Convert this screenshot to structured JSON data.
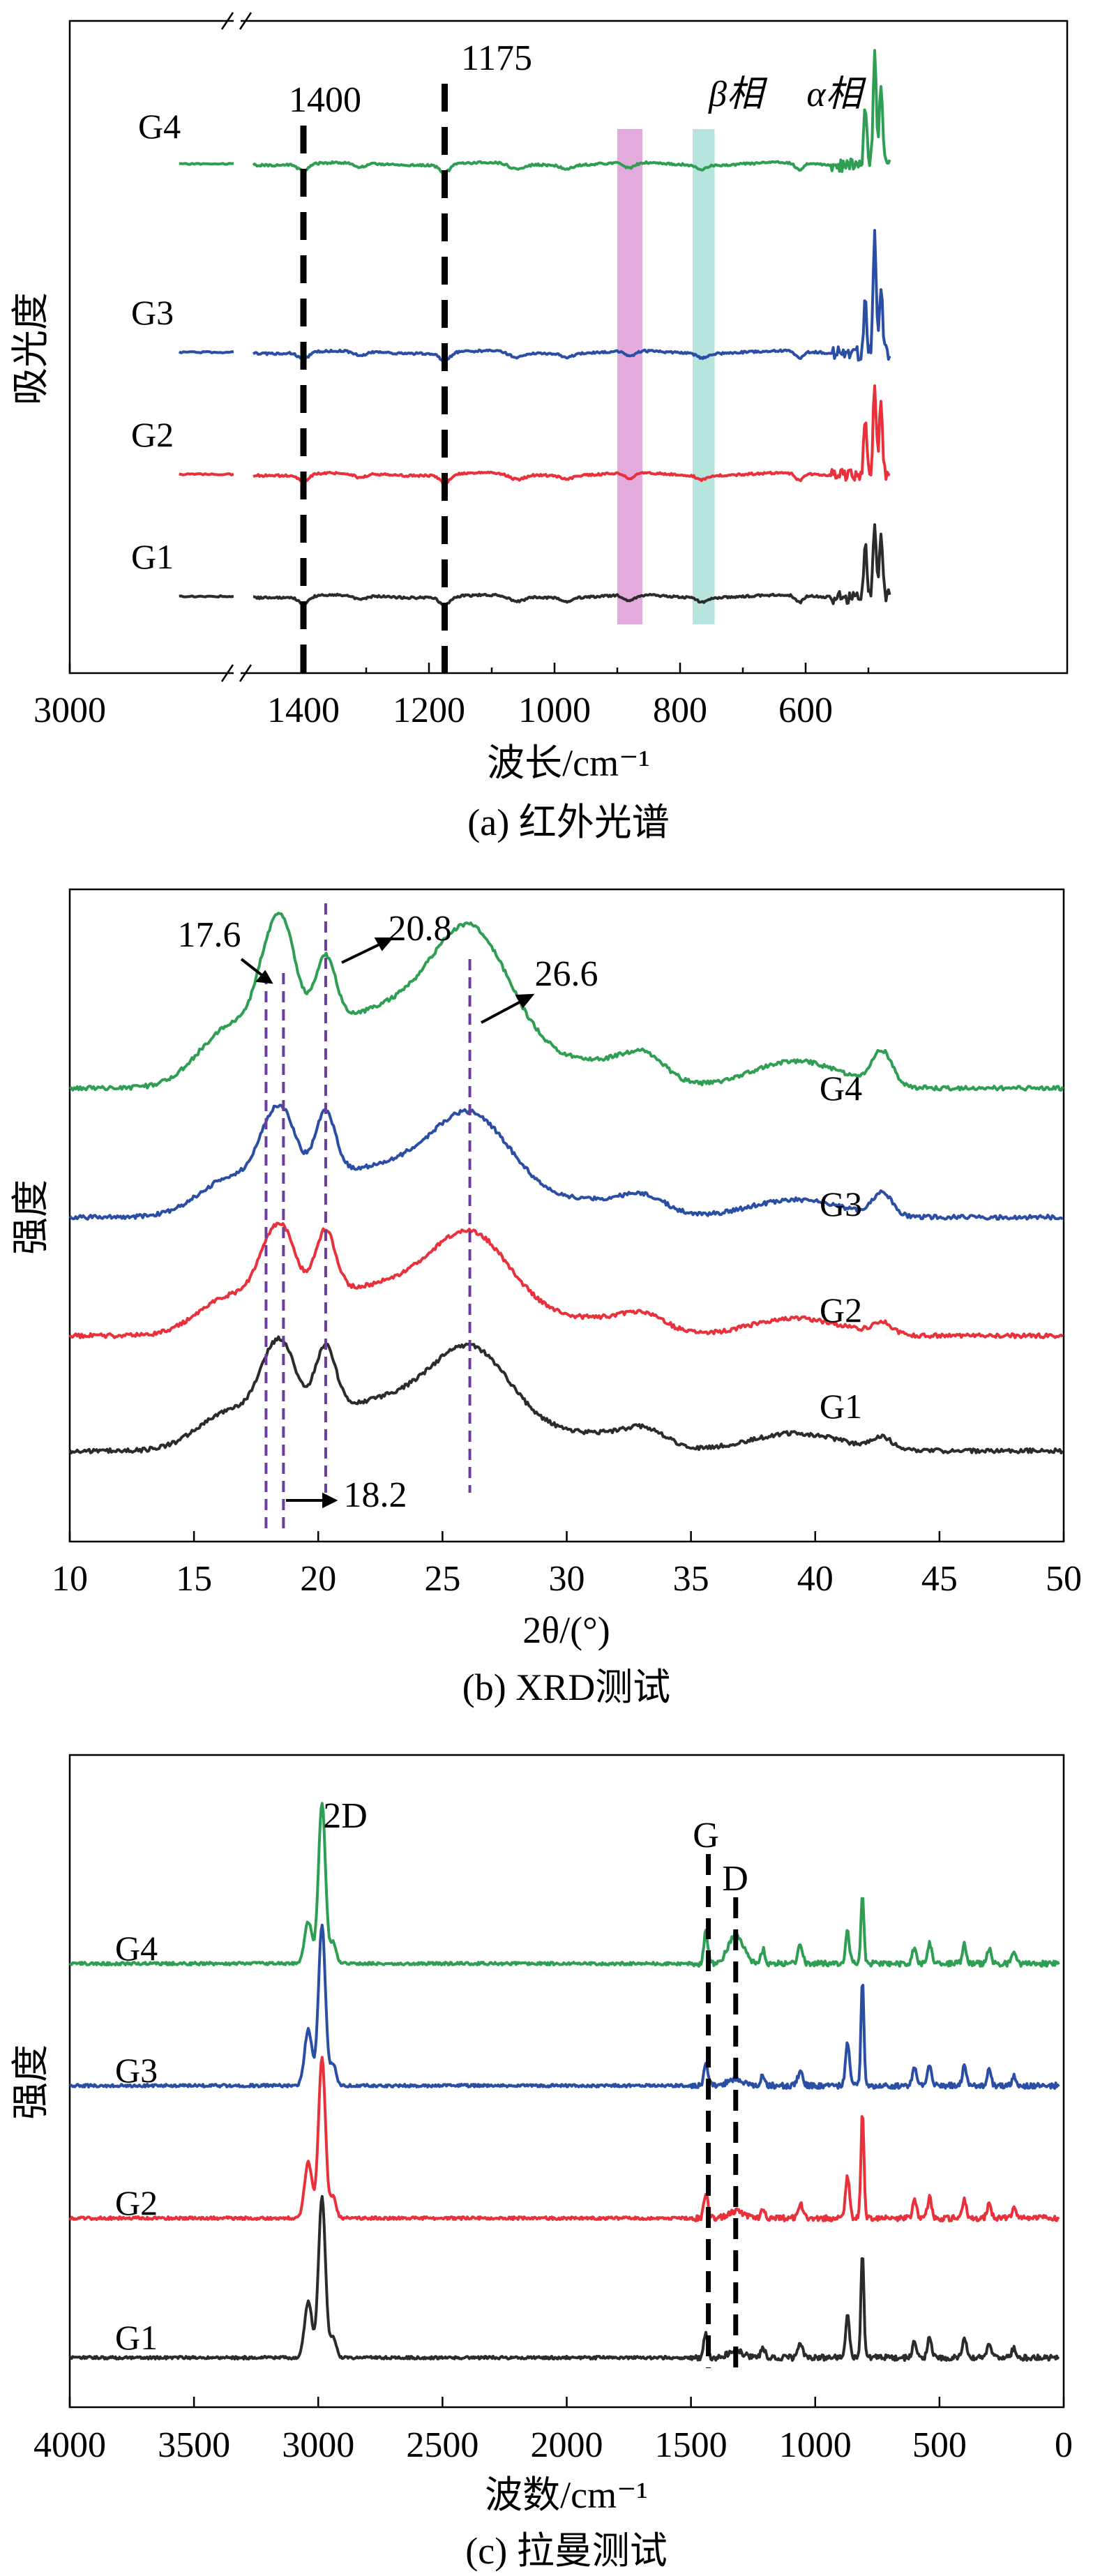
{
  "colors": {
    "G1": "#2b2b2b",
    "G2": "#e8313b",
    "G3": "#2a4ea3",
    "G4": "#2e9e52",
    "beta": "#d98fd0",
    "alpha": "#9fdbd0"
  },
  "chart_data": [
    {
      "type": "line",
      "panel": "a",
      "caption": "(a) 红外光谱",
      "xlabel": "波长/cm⁻¹",
      "ylabel": "吸光度",
      "x_reversed": true,
      "axis_break": true,
      "xticks": [
        "3000",
        "1400",
        "1200",
        "1000",
        "800",
        "600"
      ],
      "series_labels": [
        "G4",
        "G3",
        "G2",
        "G1"
      ],
      "annotations": [
        "1400",
        "1175",
        "β相",
        "α相"
      ],
      "dashed_lines_x": [
        1400,
        1175
      ],
      "bands": [
        {
          "name": "β相",
          "range": [
            900,
            860
          ]
        },
        {
          "name": "α相",
          "range": [
            780,
            745
          ]
        }
      ],
      "series": [
        {
          "name": "G4",
          "offset": 3,
          "dips": [
            [
              1400,
              0.25
            ],
            [
              1175,
              0.3
            ],
            [
              880,
              0.2
            ],
            [
              765,
              0.15
            ]
          ],
          "peaks": [
            [
              490,
              2.6
            ],
            [
              480,
              2.0
            ],
            [
              505,
              1.4
            ]
          ]
        },
        {
          "name": "G3",
          "offset": 2,
          "dips": [
            [
              1400,
              0.25
            ],
            [
              1175,
              0.3
            ],
            [
              880,
              0.2
            ],
            [
              765,
              0.15
            ]
          ],
          "peaks": [
            [
              490,
              2.9
            ],
            [
              480,
              1.6
            ],
            [
              505,
              1.2
            ]
          ]
        },
        {
          "name": "G2",
          "offset": 1,
          "dips": [
            [
              1400,
              0.25
            ],
            [
              1175,
              0.3
            ],
            [
              880,
              0.2
            ],
            [
              765,
              0.15
            ]
          ],
          "peaks": [
            [
              490,
              2.2
            ],
            [
              480,
              1.8
            ],
            [
              505,
              1.4
            ]
          ]
        },
        {
          "name": "G1",
          "offset": 0,
          "dips": [
            [
              1400,
              0.25
            ],
            [
              1175,
              0.3
            ],
            [
              880,
              0.2
            ],
            [
              765,
              0.15
            ]
          ],
          "peaks": [
            [
              490,
              1.9
            ],
            [
              480,
              1.5
            ],
            [
              505,
              1.2
            ]
          ]
        }
      ]
    },
    {
      "type": "line",
      "panel": "b",
      "caption": "(b) XRD测试",
      "xlabel": "2θ/(°)",
      "ylabel": "强度",
      "xlim": [
        10,
        50
      ],
      "xticks": [
        "10",
        "15",
        "20",
        "25",
        "30",
        "35",
        "40",
        "45",
        "50"
      ],
      "series_labels": [
        "G4",
        "G3",
        "G2",
        "G1"
      ],
      "annotations": [
        "17.6",
        "20.8",
        "26.6",
        "18.2"
      ],
      "dashed_lines_x": [
        17.9,
        18.6,
        20.3,
        26.1
      ],
      "series": [
        {
          "name": "G4",
          "offset": 3
        },
        {
          "name": "G3",
          "offset": 2
        },
        {
          "name": "G2",
          "offset": 1
        },
        {
          "name": "G1",
          "offset": 0
        }
      ]
    },
    {
      "type": "line",
      "panel": "c",
      "caption": "(c) 拉曼测试",
      "xlabel": "波数/cm⁻¹",
      "ylabel": "强度",
      "xlim": [
        4000,
        0
      ],
      "xticks": [
        "4000",
        "3500",
        "3000",
        "2500",
        "2000",
        "1500",
        "1000",
        "500",
        "0"
      ],
      "series_labels": [
        "G4",
        "G3",
        "G2",
        "G1"
      ],
      "annotations": [
        "2D",
        "G",
        "D"
      ],
      "dashed_lines_x": [
        1430,
        1320
      ],
      "series": [
        {
          "name": "G4",
          "offset": 3
        },
        {
          "name": "G3",
          "offset": 2
        },
        {
          "name": "G2",
          "offset": 1
        },
        {
          "name": "G1",
          "offset": 0
        }
      ]
    }
  ]
}
